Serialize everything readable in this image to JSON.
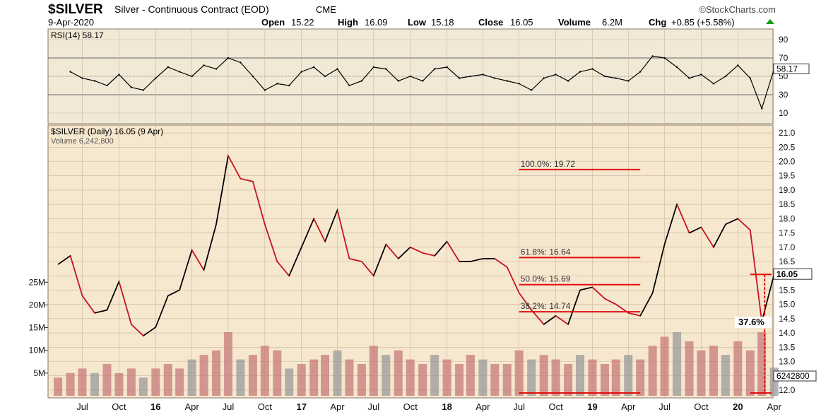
{
  "header": {
    "symbol": "$SILVER",
    "name": "Silver - Continuous Contract (EOD)",
    "exchange": "CME",
    "date": "9-Apr-2020",
    "source": "©StockCharts.com",
    "open_label": "Open",
    "open": "15.22",
    "high_label": "High",
    "high": "16.09",
    "low_label": "Low",
    "low": "15.18",
    "close_label": "Close",
    "close": "16.05",
    "volume_label": "Volume",
    "volume": "6.2M",
    "chg_label": "Chg",
    "chg": "+0.85 (+5.58%)"
  },
  "colors": {
    "panel_bg": "#f6e7cf",
    "rsi_bg": "#f1e8d6",
    "grid": "#c9b79c",
    "price_line": "#000000",
    "down": "#d81020",
    "fib": "#e01010",
    "volume": "#c77a7a",
    "volume_gray": "#9a9a9a",
    "rsi_fill_over": "#4a7a3a",
    "rsi_fill_under": "#8a3a3a",
    "up_arrow": "#10a010"
  },
  "chart_data": [
    {
      "type": "line",
      "panel": "rsi",
      "label": "RSI(14) 58.17",
      "current_value": 58.17,
      "current_label": "58.17",
      "y_ticks": [
        90,
        70,
        50,
        30,
        10
      ],
      "ylim": [
        0,
        100
      ],
      "levels": [
        70,
        30
      ],
      "x": [
        "2015-06",
        "2015-07",
        "2015-08",
        "2015-09",
        "2015-10",
        "2015-11",
        "2015-12",
        "2016-01",
        "2016-02",
        "2016-03",
        "2016-04",
        "2016-05",
        "2016-06",
        "2016-07",
        "2016-08",
        "2016-09",
        "2016-10",
        "2016-11",
        "2016-12",
        "2017-01",
        "2017-02",
        "2017-03",
        "2017-04",
        "2017-05",
        "2017-06",
        "2017-07",
        "2017-08",
        "2017-09",
        "2017-10",
        "2017-11",
        "2017-12",
        "2018-01",
        "2018-02",
        "2018-03",
        "2018-04",
        "2018-05",
        "2018-06",
        "2018-07",
        "2018-08",
        "2018-09",
        "2018-10",
        "2018-11",
        "2018-12",
        "2019-01",
        "2019-02",
        "2019-03",
        "2019-04",
        "2019-05",
        "2019-06",
        "2019-07",
        "2019-08",
        "2019-09",
        "2019-10",
        "2019-11",
        "2019-12",
        "2020-01",
        "2020-02",
        "2020-03",
        "2020-04"
      ],
      "values": [
        55,
        48,
        45,
        40,
        52,
        38,
        35,
        48,
        60,
        55,
        50,
        62,
        58,
        70,
        65,
        50,
        35,
        42,
        40,
        55,
        60,
        50,
        58,
        40,
        45,
        60,
        58,
        45,
        50,
        45,
        58,
        60,
        48,
        50,
        52,
        48,
        45,
        42,
        35,
        48,
        52,
        45,
        55,
        58,
        50,
        48,
        45,
        55,
        72,
        70,
        60,
        48,
        52,
        42,
        50,
        62,
        48,
        15,
        58
      ]
    },
    {
      "type": "line",
      "panel": "price",
      "label": "$SILVER (Daily) 16.05 (9 Apr)",
      "volume_label": "Volume 6,242,800",
      "current_value": 16.05,
      "current_label": "16.05",
      "y_ticks": [
        21.0,
        20.5,
        20.0,
        19.5,
        19.0,
        18.5,
        18.0,
        17.5,
        17.0,
        16.5,
        16.0,
        15.5,
        15.0,
        14.5,
        14.0,
        13.5,
        13.0,
        12.5,
        12.0
      ],
      "ylim": [
        11.8,
        21.2
      ],
      "x_tick_labels": [
        "Jul",
        "Oct",
        "16",
        "Apr",
        "Jul",
        "Oct",
        "17",
        "Apr",
        "Jul",
        "Oct",
        "18",
        "Apr",
        "Jul",
        "Oct",
        "19",
        "Apr",
        "Jul",
        "Oct",
        "20",
        "Apr"
      ],
      "x_ticks": [
        "2015-07",
        "2015-10",
        "2016-01",
        "2016-04",
        "2016-07",
        "2016-10",
        "2017-01",
        "2017-04",
        "2017-07",
        "2017-10",
        "2018-01",
        "2018-04",
        "2018-07",
        "2018-10",
        "2019-01",
        "2019-04",
        "2019-07",
        "2019-10",
        "2020-01",
        "2020-04"
      ],
      "x": [
        "2015-05",
        "2015-06",
        "2015-07",
        "2015-08",
        "2015-09",
        "2015-10",
        "2015-11",
        "2015-12",
        "2016-01",
        "2016-02",
        "2016-03",
        "2016-04",
        "2016-05",
        "2016-06",
        "2016-07",
        "2016-08",
        "2016-09",
        "2016-10",
        "2016-11",
        "2016-12",
        "2017-01",
        "2017-02",
        "2017-03",
        "2017-04",
        "2017-05",
        "2017-06",
        "2017-07",
        "2017-08",
        "2017-09",
        "2017-10",
        "2017-11",
        "2017-12",
        "2018-01",
        "2018-02",
        "2018-03",
        "2018-04",
        "2018-05",
        "2018-06",
        "2018-07",
        "2018-08",
        "2018-09",
        "2018-10",
        "2018-11",
        "2018-12",
        "2019-01",
        "2019-02",
        "2019-03",
        "2019-04",
        "2019-05",
        "2019-06",
        "2019-07",
        "2019-08",
        "2019-09",
        "2019-10",
        "2019-11",
        "2019-12",
        "2020-01",
        "2020-02",
        "2020-03",
        "2020-04"
      ],
      "values": [
        16.4,
        16.7,
        15.3,
        14.7,
        14.8,
        15.8,
        14.3,
        13.9,
        14.2,
        15.3,
        15.5,
        16.9,
        16.2,
        17.8,
        20.2,
        19.4,
        19.3,
        17.8,
        16.5,
        16.0,
        17.0,
        18.0,
        17.2,
        18.3,
        16.6,
        16.5,
        16.0,
        17.1,
        16.6,
        17.0,
        16.8,
        16.7,
        17.2,
        16.5,
        16.5,
        16.6,
        16.6,
        16.3,
        15.4,
        14.8,
        14.3,
        14.6,
        14.3,
        15.5,
        15.6,
        15.2,
        15.0,
        14.7,
        14.6,
        15.4,
        17.1,
        18.5,
        17.5,
        17.7,
        17.0,
        17.8,
        18.0,
        17.6,
        14.4,
        16.05
      ],
      "fib_levels": [
        {
          "label": "100.0%: 19.72",
          "value": 19.72
        },
        {
          "label": "61.8%: 16.64",
          "value": 16.64
        },
        {
          "label": "50.0%: 15.69",
          "value": 15.69
        },
        {
          "label": "38.2%: 14.74",
          "value": 14.74
        }
      ],
      "annotation": "37.6%",
      "low_marker": 11.9
    },
    {
      "type": "bar",
      "panel": "volume",
      "y_ticks": [
        "25M",
        "20M",
        "15M",
        "10M",
        "5M"
      ],
      "y_tick_values": [
        25,
        20,
        15,
        10,
        5
      ],
      "ylim": [
        0,
        28
      ],
      "current_label": "6242800",
      "x": [
        "2015-05",
        "2015-06",
        "2015-07",
        "2015-08",
        "2015-09",
        "2015-10",
        "2015-11",
        "2015-12",
        "2016-01",
        "2016-02",
        "2016-03",
        "2016-04",
        "2016-05",
        "2016-06",
        "2016-07",
        "2016-08",
        "2016-09",
        "2016-10",
        "2016-11",
        "2016-12",
        "2017-01",
        "2017-02",
        "2017-03",
        "2017-04",
        "2017-05",
        "2017-06",
        "2017-07",
        "2017-08",
        "2017-09",
        "2017-10",
        "2017-11",
        "2017-12",
        "2018-01",
        "2018-02",
        "2018-03",
        "2018-04",
        "2018-05",
        "2018-06",
        "2018-07",
        "2018-08",
        "2018-09",
        "2018-10",
        "2018-11",
        "2018-12",
        "2019-01",
        "2019-02",
        "2019-03",
        "2019-04",
        "2019-05",
        "2019-06",
        "2019-07",
        "2019-08",
        "2019-09",
        "2019-10",
        "2019-11",
        "2019-12",
        "2020-01",
        "2020-02",
        "2020-03",
        "2020-04"
      ],
      "values": [
        4,
        5,
        6,
        5,
        7,
        5,
        6,
        4,
        6,
        7,
        6,
        8,
        9,
        10,
        14,
        8,
        9,
        11,
        10,
        6,
        7,
        8,
        9,
        10,
        8,
        7,
        11,
        9,
        10,
        8,
        7,
        9,
        8,
        7,
        9,
        8,
        7,
        7,
        10,
        8,
        9,
        8,
        7,
        9,
        8,
        7,
        8,
        9,
        8,
        11,
        13,
        14,
        12,
        10,
        11,
        9,
        12,
        10,
        14,
        6.2
      ]
    }
  ]
}
